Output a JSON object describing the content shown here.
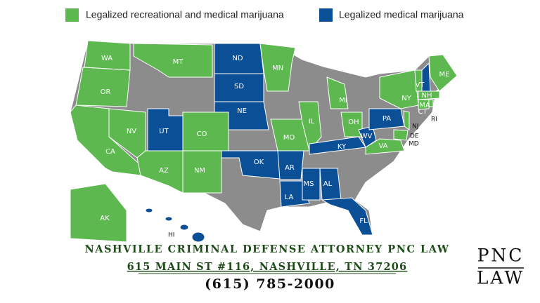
{
  "legend": {
    "items": [
      "Legalized recreational and medical marijuana",
      "Legalized medical marijuana"
    ]
  },
  "states": [
    "WA",
    "OR",
    "CA",
    "NV",
    "MT",
    "UT",
    "CO",
    "AZ",
    "NM",
    "ND",
    "SD",
    "NE",
    "MN",
    "OK",
    "AR",
    "LA",
    "MS",
    "AL",
    "FL",
    "MO",
    "IL",
    "MI",
    "OH",
    "KY",
    "WV",
    "PA",
    "VA",
    "NY",
    "ME",
    "VT",
    "NH",
    "MA",
    "CT",
    "RI",
    "NJ",
    "DE",
    "MD",
    "AK",
    "HI"
  ],
  "footer": {
    "firm": "NASHVILLE CRIMINAL DEFENSE ATTORNEY PNC LAW",
    "address": "615 MAIN ST #116, NASHVILLE, TN 37206",
    "phone": "(615) 785-2000"
  },
  "logo": {
    "line1": "PNC",
    "line2": "LAW"
  }
}
